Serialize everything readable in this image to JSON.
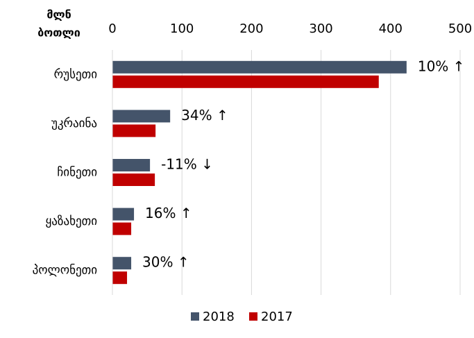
{
  "chart_data": {
    "type": "bar",
    "orientation": "horizontal",
    "axis_title": [
      "მლნ",
      "ბოთლი"
    ],
    "categories": [
      "რუსეთი",
      "უკრაინა",
      "ჩინეთი",
      "ყაზახეთი",
      "პოლონეთი"
    ],
    "series": [
      {
        "name": "2018",
        "color": "#44546a",
        "values": [
          423,
          83,
          54,
          31,
          27
        ]
      },
      {
        "name": "2017",
        "color": "#c00000",
        "values": [
          383,
          62,
          61,
          27,
          21
        ]
      }
    ],
    "annotations": [
      "10% ↑",
      "34% ↑",
      "-11% ↓",
      "16% ↑",
      "30% ↑"
    ],
    "xlim": [
      0,
      500
    ],
    "xticks": [
      0,
      100,
      200,
      300,
      400,
      500
    ],
    "grid": true,
    "legend": "bottom"
  }
}
